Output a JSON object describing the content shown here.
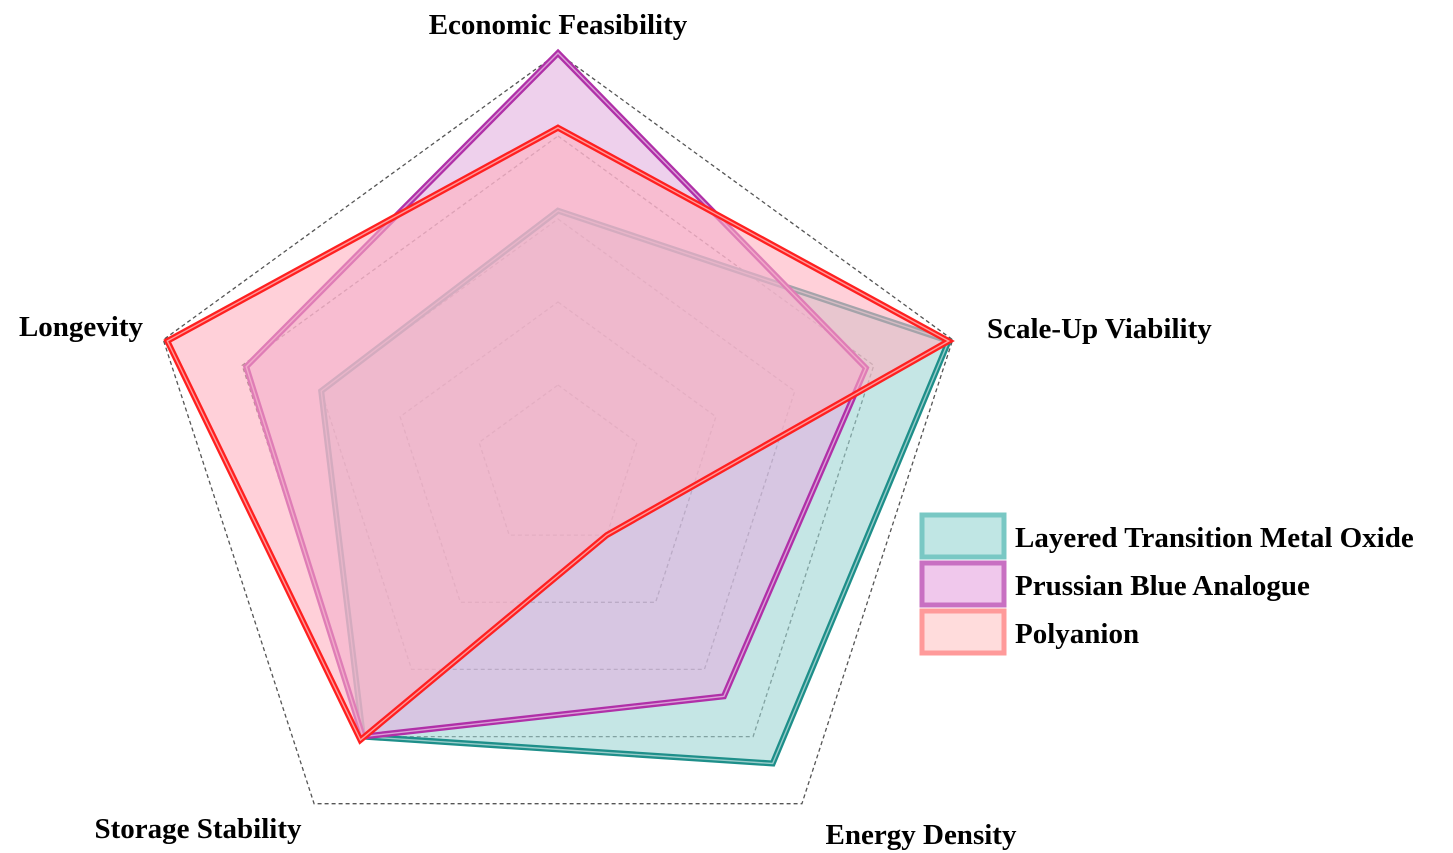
{
  "chart_data": {
    "type": "radar",
    "axes": [
      "Economic Feasibility",
      "Scale-Up Viability",
      "Energy Density",
      "Storage Stability",
      "Longevity"
    ],
    "range": [
      0,
      5
    ],
    "grid_levels": 5,
    "grid": "dashed",
    "legend_position": "right",
    "series": [
      {
        "name": "Layered Transition Metal Oxide",
        "values": [
          3.1,
          4.95,
          4.4,
          4.0,
          3.0
        ],
        "color": "#1e8f8a",
        "fill": "#9ed6d4"
      },
      {
        "name": "Prussian Blue Analogue",
        "values": [
          5.0,
          3.9,
          3.4,
          4.0,
          3.95
        ],
        "color": "#b030a8",
        "fill": "#e3b0df"
      },
      {
        "name": "Polyanion",
        "values": [
          4.1,
          4.95,
          1.0,
          4.05,
          4.95
        ],
        "color": "#ff2020",
        "fill": "#ffb0bf"
      }
    ]
  }
}
